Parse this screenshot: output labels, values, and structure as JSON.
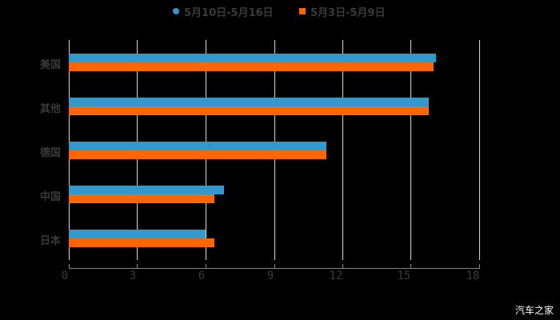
{
  "chart_data": {
    "type": "bar",
    "orientation": "horizontal",
    "title": "",
    "xlabel": "",
    "ylabel": "",
    "categories": [
      "美国",
      "其他",
      "德国",
      "中国",
      "日本"
    ],
    "series": [
      {
        "name": "5月10日-5月16日",
        "color": "#3399cc",
        "values": [
          16.1,
          15.8,
          11.3,
          6.8,
          6.0
        ]
      },
      {
        "name": "5月3日-5月9日",
        "color": "#ff6600",
        "values": [
          16.0,
          15.8,
          11.3,
          6.4,
          6.4
        ]
      }
    ],
    "xlim": [
      0,
      18
    ],
    "xticks": [
      "0",
      "3",
      "6",
      "9",
      "12",
      "15",
      "18"
    ],
    "grid": true,
    "legend_position": "top"
  },
  "legend": {
    "series_a": "5月10日-5月16日",
    "series_b": "5月3日-5月9日"
  },
  "watermark": "汽车之家"
}
